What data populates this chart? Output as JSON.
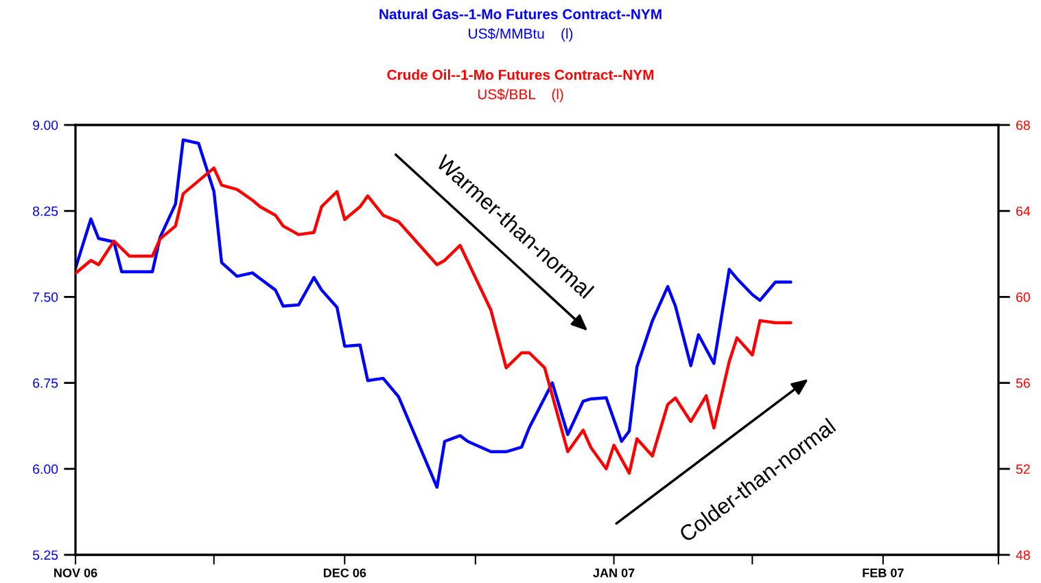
{
  "chart_data": {
    "type": "line",
    "legend": "top",
    "xlim": [
      "2006-11-01",
      "2007-03-01"
    ],
    "xticks": [
      {
        "value": "2006-11-01",
        "label": "NOV 06"
      },
      {
        "value": "2006-11-19",
        "label": null
      },
      {
        "value": "2006-12-06",
        "label": "DEC 06"
      },
      {
        "value": "2006-12-23",
        "label": null
      },
      {
        "value": "2007-01-10",
        "label": "JAN 07"
      },
      {
        "value": "2007-01-28",
        "label": null
      },
      {
        "value": "2007-02-14",
        "label": "FEB 07"
      },
      {
        "value": "2007-03-01",
        "label": null
      }
    ],
    "ylim": [
      5.25,
      9.0
    ],
    "yticks": [
      {
        "value": 5.25,
        "label": "5.25"
      },
      {
        "value": 6.0,
        "label": "6.00"
      },
      {
        "value": 6.75,
        "label": "6.75"
      },
      {
        "value": 7.5,
        "label": "7.50"
      },
      {
        "value": 8.25,
        "label": "8.25"
      },
      {
        "value": 9.0,
        "label": "9.00"
      }
    ],
    "y2lim": [
      48,
      68
    ],
    "y2ticks": [
      48,
      52,
      56,
      60,
      64,
      68
    ],
    "grid": false,
    "annotations": [
      "US$/MMBtu    (l)",
      "US$/BBL    (l)",
      "Warmer-than-normal",
      "Colder-than-normal"
    ],
    "series": [
      {
        "name": "Natural Gas--1-Mo Futures Contract--NYM",
        "color": "#0000ff",
        "axis": "y",
        "x": [
          "2006-11-01",
          "2006-11-03",
          "2006-11-04",
          "2006-11-06",
          "2006-11-07",
          "2006-11-09",
          "2006-11-11",
          "2006-11-12",
          "2006-11-14",
          "2006-11-15",
          "2006-11-17",
          "2006-11-19",
          "2006-11-20",
          "2006-11-22",
          "2006-11-24",
          "2006-11-25",
          "2006-11-27",
          "2006-11-28",
          "2006-11-30",
          "2006-12-02",
          "2006-12-03",
          "2006-12-05",
          "2006-12-06",
          "2006-12-08",
          "2006-12-09",
          "2006-12-11",
          "2006-12-13",
          "2006-12-18",
          "2006-12-19",
          "2006-12-21",
          "2006-12-22",
          "2006-12-25",
          "2006-12-27",
          "2006-12-29",
          "2006-12-30",
          "2007-01-01",
          "2007-01-02",
          "2007-01-04",
          "2007-01-06",
          "2007-01-07",
          "2007-01-09",
          "2007-01-11",
          "2007-01-12",
          "2007-01-13",
          "2007-01-15",
          "2007-01-17",
          "2007-01-18",
          "2007-01-20",
          "2007-01-21",
          "2007-01-23",
          "2007-01-25",
          "2007-01-26",
          "2007-01-28",
          "2007-01-29",
          "2007-01-31",
          "2007-02-02"
        ],
        "values": [
          7.75,
          8.18,
          8.01,
          7.98,
          7.72,
          7.72,
          7.72,
          8.02,
          8.31,
          8.87,
          8.84,
          8.42,
          7.8,
          7.68,
          7.71,
          7.66,
          7.56,
          7.42,
          7.43,
          7.67,
          7.56,
          7.41,
          7.07,
          7.08,
          6.77,
          6.79,
          6.63,
          5.84,
          6.24,
          6.29,
          6.24,
          6.15,
          6.15,
          6.19,
          6.36,
          6.62,
          6.75,
          6.3,
          6.59,
          6.61,
          6.62,
          6.24,
          6.33,
          6.89,
          7.29,
          7.59,
          7.42,
          6.9,
          7.17,
          6.92,
          7.74,
          7.66,
          7.52,
          7.47,
          7.63,
          7.63
        ]
      },
      {
        "name": "Crude Oil--1-Mo Futures Contract--NYM",
        "color": "#ff0000",
        "axis": "y2",
        "x": [
          "2006-11-01",
          "2006-11-03",
          "2006-11-04",
          "2006-11-06",
          "2006-11-08",
          "2006-11-11",
          "2006-11-12",
          "2006-11-14",
          "2006-11-15",
          "2006-11-17",
          "2006-11-19",
          "2006-11-20",
          "2006-11-22",
          "2006-11-24",
          "2006-11-25",
          "2006-11-27",
          "2006-11-28",
          "2006-11-30",
          "2006-12-02",
          "2006-12-03",
          "2006-12-05",
          "2006-12-06",
          "2006-12-08",
          "2006-12-09",
          "2006-12-11",
          "2006-12-13",
          "2006-12-18",
          "2006-12-19",
          "2006-12-21",
          "2006-12-25",
          "2006-12-27",
          "2006-12-29",
          "2006-12-30",
          "2007-01-01",
          "2007-01-04",
          "2007-01-06",
          "2007-01-07",
          "2007-01-09",
          "2007-01-10",
          "2007-01-12",
          "2007-01-13",
          "2007-01-15",
          "2007-01-17",
          "2007-01-18",
          "2007-01-20",
          "2007-01-22",
          "2007-01-23",
          "2007-01-25",
          "2007-01-26",
          "2007-01-28",
          "2007-01-29",
          "2007-01-31",
          "2007-02-02"
        ],
        "values": [
          61.1,
          61.7,
          61.5,
          62.6,
          61.9,
          61.9,
          62.7,
          63.3,
          64.8,
          65.4,
          66.0,
          65.2,
          65.0,
          64.5,
          64.2,
          63.8,
          63.3,
          62.9,
          63.0,
          64.2,
          64.9,
          63.6,
          64.2,
          64.7,
          63.8,
          63.5,
          61.5,
          61.7,
          62.4,
          59.4,
          56.7,
          57.4,
          57.4,
          56.7,
          52.8,
          53.8,
          53.0,
          52.0,
          53.1,
          51.8,
          53.4,
          52.6,
          55.0,
          55.3,
          54.2,
          55.4,
          53.9,
          57.0,
          58.1,
          57.3,
          58.9,
          58.8,
          58.8
        ]
      }
    ]
  }
}
